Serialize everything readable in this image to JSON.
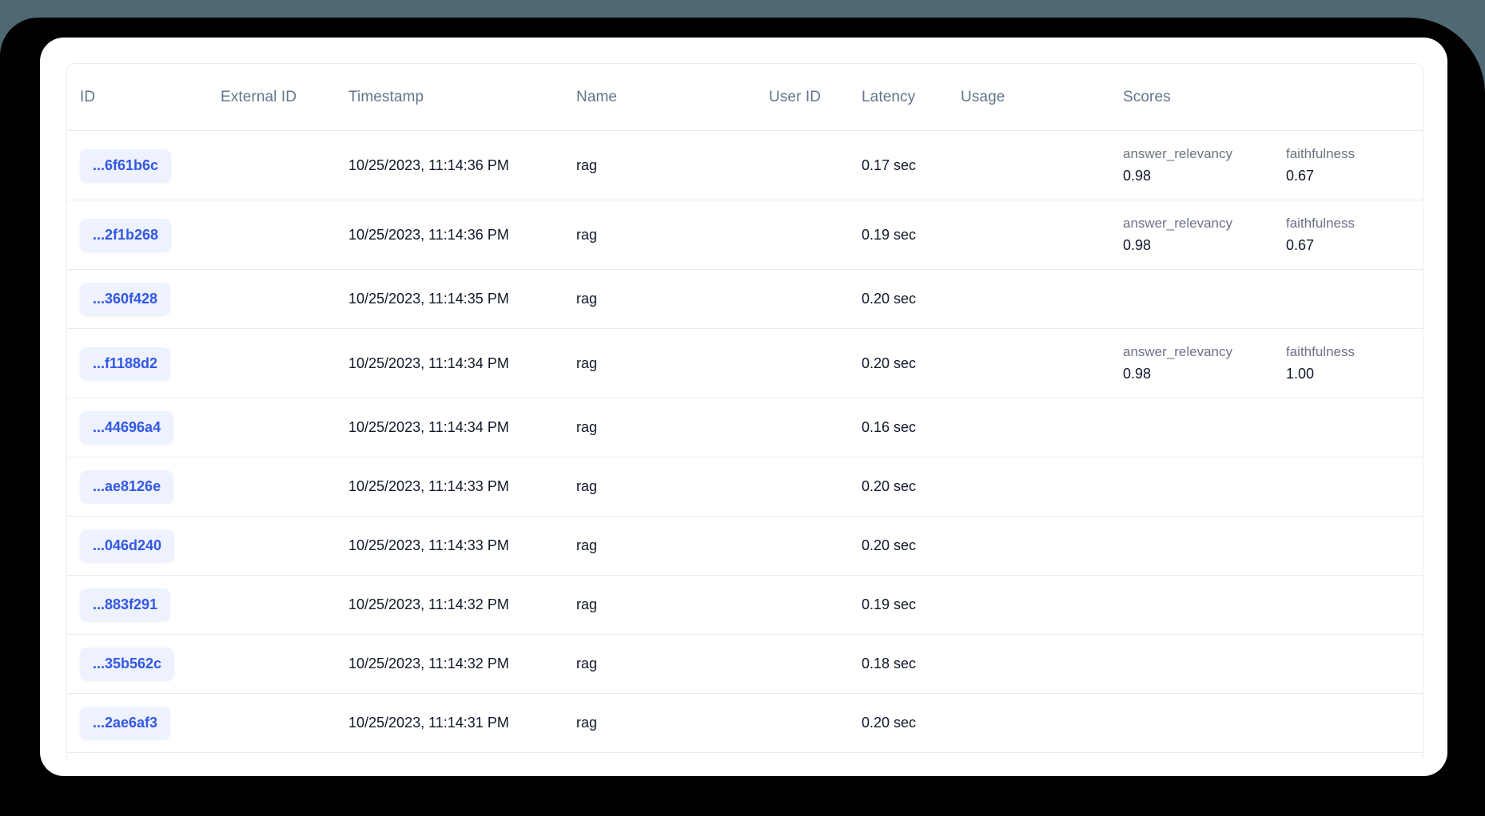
{
  "colors": {
    "page_bg": "#4e6973",
    "shadow": "#000000",
    "card_bg": "#ffffff",
    "divider": "#e8ecf1",
    "header_text": "#64748b",
    "body_text": "#101828",
    "score_label": "#6b7280",
    "badge_bg": "#eef2ff",
    "accent": "#3358e4"
  },
  "table": {
    "columns": [
      {
        "key": "id",
        "label": "ID"
      },
      {
        "key": "external_id",
        "label": "External ID"
      },
      {
        "key": "timestamp",
        "label": "Timestamp"
      },
      {
        "key": "name",
        "label": "Name"
      },
      {
        "key": "user_id",
        "label": "User ID"
      },
      {
        "key": "latency",
        "label": "Latency"
      },
      {
        "key": "usage",
        "label": "Usage"
      },
      {
        "key": "scores",
        "label": "Scores"
      }
    ],
    "rows": [
      {
        "id": "...6f61b6c",
        "external_id": "",
        "timestamp": "10/25/2023, 11:14:36 PM",
        "name": "rag",
        "user_id": "",
        "latency": "0.17 sec",
        "usage": "",
        "scores": [
          {
            "name": "answer_relevancy",
            "value": "0.98"
          },
          {
            "name": "faithfulness",
            "value": "0.67"
          }
        ]
      },
      {
        "id": "...2f1b268",
        "external_id": "",
        "timestamp": "10/25/2023, 11:14:36 PM",
        "name": "rag",
        "user_id": "",
        "latency": "0.19 sec",
        "usage": "",
        "scores": [
          {
            "name": "answer_relevancy",
            "value": "0.98"
          },
          {
            "name": "faithfulness",
            "value": "0.67"
          }
        ]
      },
      {
        "id": "...360f428",
        "external_id": "",
        "timestamp": "10/25/2023, 11:14:35 PM",
        "name": "rag",
        "user_id": "",
        "latency": "0.20 sec",
        "usage": "",
        "scores": []
      },
      {
        "id": "...f1188d2",
        "external_id": "",
        "timestamp": "10/25/2023, 11:14:34 PM",
        "name": "rag",
        "user_id": "",
        "latency": "0.20 sec",
        "usage": "",
        "scores": [
          {
            "name": "answer_relevancy",
            "value": "0.98"
          },
          {
            "name": "faithfulness",
            "value": "1.00"
          }
        ]
      },
      {
        "id": "...44696a4",
        "external_id": "",
        "timestamp": "10/25/2023, 11:14:34 PM",
        "name": "rag",
        "user_id": "",
        "latency": "0.16 sec",
        "usage": "",
        "scores": []
      },
      {
        "id": "...ae8126e",
        "external_id": "",
        "timestamp": "10/25/2023, 11:14:33 PM",
        "name": "rag",
        "user_id": "",
        "latency": "0.20 sec",
        "usage": "",
        "scores": []
      },
      {
        "id": "...046d240",
        "external_id": "",
        "timestamp": "10/25/2023, 11:14:33 PM",
        "name": "rag",
        "user_id": "",
        "latency": "0.20 sec",
        "usage": "",
        "scores": []
      },
      {
        "id": "...883f291",
        "external_id": "",
        "timestamp": "10/25/2023, 11:14:32 PM",
        "name": "rag",
        "user_id": "",
        "latency": "0.19 sec",
        "usage": "",
        "scores": []
      },
      {
        "id": "...35b562c",
        "external_id": "",
        "timestamp": "10/25/2023, 11:14:32 PM",
        "name": "rag",
        "user_id": "",
        "latency": "0.18 sec",
        "usage": "",
        "scores": []
      },
      {
        "id": "...2ae6af3",
        "external_id": "",
        "timestamp": "10/25/2023, 11:14:31 PM",
        "name": "rag",
        "user_id": "",
        "latency": "0.20 sec",
        "usage": "",
        "scores": []
      }
    ]
  }
}
